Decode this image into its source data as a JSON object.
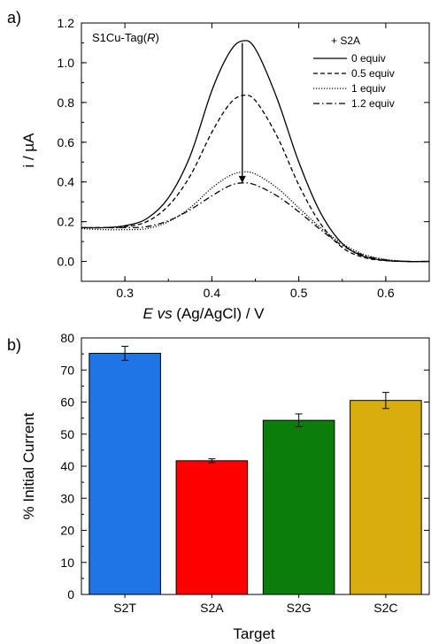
{
  "chart_data": [
    {
      "panel_label": "a)",
      "type": "line",
      "annotation": "S1Cu-Tag(",
      "annotation_italic": "R",
      "annotation_close": ")",
      "legend_title": "+ S2A",
      "xlabel_italic_1": "E",
      "xlabel_italic_2": "vs",
      "xlabel_rest": "(Ag/AgCl) / V",
      "ylabel": "i / µA",
      "xlim": [
        0.25,
        0.65
      ],
      "ylim": [
        -0.1,
        1.2
      ],
      "xticks": [
        0.3,
        0.4,
        0.5,
        0.6
      ],
      "xtick_labels": [
        "0.3",
        "0.4",
        "0.5",
        "0.6"
      ],
      "yticks": [
        0.0,
        0.2,
        0.4,
        0.6,
        0.8,
        1.0,
        1.2
      ],
      "ytick_labels": [
        "0.0",
        "0.2",
        "0.4",
        "0.6",
        "0.8",
        "1.0",
        "1.2"
      ],
      "arrow": {
        "x": 0.435,
        "y_from": 1.1,
        "y_to": 0.395,
        "direction": "down"
      },
      "series": [
        {
          "name": "0 equiv",
          "dash": "solid",
          "x": [
            0.25,
            0.275,
            0.3,
            0.325,
            0.35,
            0.375,
            0.4,
            0.42,
            0.435,
            0.45,
            0.475,
            0.5,
            0.525,
            0.55,
            0.575,
            0.6,
            0.625,
            0.65
          ],
          "y": [
            0.17,
            0.17,
            0.18,
            0.215,
            0.32,
            0.53,
            0.86,
            1.05,
            1.11,
            1.07,
            0.82,
            0.5,
            0.245,
            0.09,
            0.025,
            0.005,
            0.0,
            0.0
          ]
        },
        {
          "name": "0.5 equiv",
          "dash": "dashed",
          "x": [
            0.25,
            0.275,
            0.3,
            0.325,
            0.35,
            0.375,
            0.4,
            0.42,
            0.435,
            0.45,
            0.475,
            0.5,
            0.525,
            0.55,
            0.575,
            0.6,
            0.625,
            0.65
          ],
          "y": [
            0.17,
            0.17,
            0.175,
            0.2,
            0.28,
            0.43,
            0.65,
            0.79,
            0.835,
            0.81,
            0.63,
            0.385,
            0.19,
            0.07,
            0.02,
            0.004,
            0.0,
            0.0
          ]
        },
        {
          "name": "1 equiv",
          "dash": "dotted",
          "x": [
            0.25,
            0.275,
            0.3,
            0.325,
            0.35,
            0.375,
            0.4,
            0.42,
            0.435,
            0.45,
            0.475,
            0.5,
            0.525,
            0.55,
            0.575,
            0.6,
            0.625,
            0.65
          ],
          "y": [
            0.165,
            0.16,
            0.16,
            0.165,
            0.2,
            0.27,
            0.37,
            0.43,
            0.45,
            0.44,
            0.37,
            0.27,
            0.17,
            0.09,
            0.035,
            0.01,
            0.0,
            0.0
          ]
        },
        {
          "name": "1.2 equiv",
          "dash": "dashdot",
          "x": [
            0.25,
            0.275,
            0.3,
            0.325,
            0.35,
            0.375,
            0.4,
            0.42,
            0.435,
            0.45,
            0.475,
            0.5,
            0.525,
            0.55,
            0.575,
            0.6,
            0.625,
            0.65
          ],
          "y": [
            0.17,
            0.17,
            0.17,
            0.175,
            0.205,
            0.26,
            0.33,
            0.38,
            0.395,
            0.385,
            0.33,
            0.25,
            0.16,
            0.08,
            0.03,
            0.008,
            0.0,
            0.0
          ]
        }
      ]
    },
    {
      "panel_label": "b)",
      "type": "bar",
      "xlabel": "Target",
      "ylabel": "% Initial Current",
      "ylim": [
        0,
        80
      ],
      "yticks": [
        0,
        10,
        20,
        30,
        40,
        50,
        60,
        70,
        80
      ],
      "ytick_labels": [
        "0",
        "10",
        "20",
        "30",
        "40",
        "50",
        "60",
        "70",
        "80"
      ],
      "categories": [
        "S2T",
        "S2A",
        "S2G",
        "S2C"
      ],
      "values": [
        75.2,
        41.7,
        54.3,
        60.5
      ],
      "errors": [
        2.2,
        0.6,
        2.0,
        2.5
      ],
      "colors": [
        "#1f74e6",
        "#ff0000",
        "#0b7d0b",
        "#d9ad0d"
      ]
    }
  ]
}
